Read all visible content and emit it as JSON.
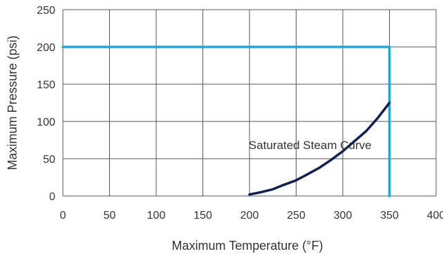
{
  "chart_data": {
    "type": "line",
    "title": "",
    "xlabel": "Maximum Temperature (°F)",
    "ylabel": "Maximum Pressure (psi)",
    "xlim": [
      0,
      400
    ],
    "ylim": [
      0,
      250
    ],
    "x_ticks": [
      0,
      50,
      100,
      150,
      200,
      250,
      300,
      350,
      400
    ],
    "y_ticks": [
      0,
      50,
      100,
      150,
      200,
      250
    ],
    "grid": true,
    "series": [
      {
        "color": "#0d1f5c",
        "x": [
          200,
          212,
          225,
          237,
          250,
          262,
          275,
          287,
          300,
          312,
          325,
          337,
          350
        ],
        "y": [
          2,
          5,
          9,
          15,
          21,
          29,
          38,
          48,
          60,
          73,
          87,
          104,
          125
        ]
      },
      {
        "color": "#1ea7df",
        "x": [
          0,
          350,
          350
        ],
        "y": [
          200,
          200,
          0
        ]
      }
    ],
    "annotations": [
      {
        "text": "Saturated Steam Curve",
        "x": 265,
        "y": 63
      }
    ]
  }
}
